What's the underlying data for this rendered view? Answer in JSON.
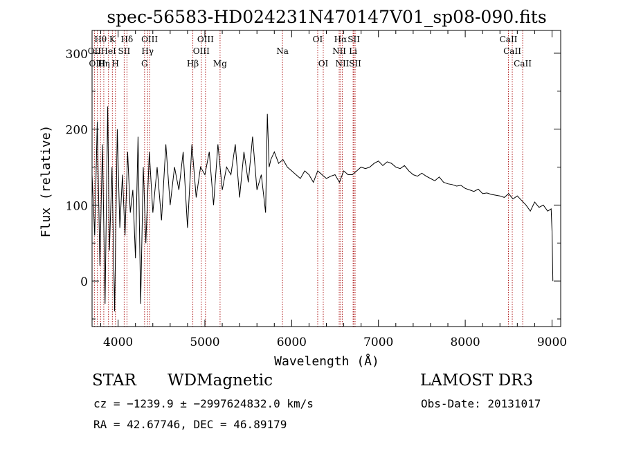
{
  "chart_data": {
    "type": "line",
    "title": "spec-56583-HD024231N470147V01_sp08-090.fits",
    "xlabel": "Wavelength (Å)",
    "ylabel": "Flux (relative)",
    "xlim": [
      3700,
      9100
    ],
    "ylim": [
      -60,
      330
    ],
    "x_ticks": [
      4000,
      5000,
      6000,
      7000,
      8000,
      9000
    ],
    "x_tick_labels": [
      "4000",
      "5000",
      "6000",
      "7000",
      "8000",
      "9000"
    ],
    "y_ticks": [
      0,
      100,
      200,
      300
    ],
    "y_tick_labels": [
      "0",
      "100",
      "200",
      "300"
    ],
    "grid": false,
    "line_color": "#000000",
    "marker_color": "#b22222",
    "series": [
      {
        "name": "flux",
        "x": [
          3700,
          3730,
          3760,
          3790,
          3820,
          3850,
          3880,
          3900,
          3930,
          3960,
          3990,
          4020,
          4050,
          4080,
          4110,
          4140,
          4170,
          4200,
          4230,
          4260,
          4290,
          4320,
          4360,
          4400,
          4450,
          4500,
          4550,
          4600,
          4650,
          4700,
          4750,
          4800,
          4850,
          4900,
          4950,
          5000,
          5050,
          5100,
          5150,
          5200,
          5250,
          5300,
          5350,
          5400,
          5450,
          5500,
          5550,
          5600,
          5650,
          5700,
          5720,
          5740,
          5760,
          5800,
          5850,
          5900,
          5950,
          6000,
          6050,
          6100,
          6150,
          6200,
          6250,
          6300,
          6350,
          6400,
          6450,
          6500,
          6550,
          6600,
          6650,
          6700,
          6750,
          6800,
          6850,
          6900,
          6950,
          7000,
          7050,
          7100,
          7150,
          7200,
          7250,
          7300,
          7350,
          7400,
          7450,
          7500,
          7550,
          7600,
          7650,
          7700,
          7750,
          7800,
          7850,
          7900,
          7950,
          8000,
          8050,
          8100,
          8150,
          8200,
          8250,
          8300,
          8350,
          8400,
          8450,
          8500,
          8550,
          8600,
          8650,
          8700,
          8750,
          8800,
          8850,
          8900,
          8950,
          8990,
          9000,
          9010
        ],
        "y": [
          140,
          60,
          210,
          20,
          180,
          -30,
          230,
          40,
          150,
          -40,
          200,
          70,
          140,
          60,
          170,
          90,
          120,
          30,
          190,
          -30,
          150,
          50,
          170,
          90,
          150,
          80,
          180,
          100,
          150,
          120,
          170,
          70,
          180,
          110,
          150,
          140,
          170,
          100,
          180,
          120,
          150,
          140,
          180,
          110,
          170,
          130,
          190,
          120,
          140,
          90,
          220,
          150,
          160,
          170,
          155,
          160,
          150,
          145,
          140,
          135,
          145,
          140,
          130,
          145,
          140,
          135,
          138,
          140,
          130,
          145,
          140,
          140,
          145,
          150,
          148,
          150,
          155,
          158,
          152,
          157,
          155,
          150,
          148,
          152,
          145,
          140,
          138,
          142,
          138,
          135,
          132,
          137,
          130,
          128,
          127,
          125,
          126,
          122,
          120,
          118,
          121,
          115,
          116,
          114,
          113,
          112,
          110,
          115,
          108,
          112,
          106,
          100,
          92,
          104,
          97,
          100,
          92,
          95,
          65,
          0
        ]
      }
    ],
    "lines": [
      {
        "label": "Hθ",
        "x": 3798,
        "row": 1
      },
      {
        "label": "OII",
        "x": 3727,
        "row": 2
      },
      {
        "label": "OIII",
        "x": 3760,
        "row": 3
      },
      {
        "label": "Hη",
        "x": 3835,
        "row": 3
      },
      {
        "label": "K",
        "x": 3934,
        "row": 1
      },
      {
        "label": "HeI",
        "x": 3889,
        "row": 2
      },
      {
        "label": "H",
        "x": 3969,
        "row": 3
      },
      {
        "label": "SII",
        "x": 4070,
        "row": 2
      },
      {
        "label": "Hδ",
        "x": 4102,
        "row": 1
      },
      {
        "label": "OIII",
        "x": 4363,
        "row": 1
      },
      {
        "label": "Hγ",
        "x": 4340,
        "row": 2
      },
      {
        "label": "G",
        "x": 4305,
        "row": 3
      },
      {
        "label": "Hβ",
        "x": 4861,
        "row": 3
      },
      {
        "label": "OIII",
        "x": 5007,
        "row": 1
      },
      {
        "label": "OIII",
        "x": 4959,
        "row": 2
      },
      {
        "label": "Mg",
        "x": 5175,
        "row": 3
      },
      {
        "label": "Na",
        "x": 5894,
        "row": 2
      },
      {
        "label": "OI",
        "x": 6300,
        "row": 1
      },
      {
        "label": "OI",
        "x": 6364,
        "row": 3
      },
      {
        "label": "Hα",
        "x": 6563,
        "row": 1
      },
      {
        "label": "NII",
        "x": 6548,
        "row": 2
      },
      {
        "label": "NII",
        "x": 6583,
        "row": 3
      },
      {
        "label": "SII",
        "x": 6716,
        "row": 1
      },
      {
        "label": "Li",
        "x": 6708,
        "row": 2
      },
      {
        "label": "SII",
        "x": 6731,
        "row": 3
      },
      {
        "label": "CaII",
        "x": 8498,
        "row": 1
      },
      {
        "label": "CaII",
        "x": 8542,
        "row": 2
      },
      {
        "label": "CaII",
        "x": 8662,
        "row": 3
      }
    ]
  },
  "info": {
    "class": "STAR",
    "subclass": "WDMagnetic",
    "survey": "LAMOST DR3",
    "redshift": "cz = −1239.9 ± −2997624832.0 km/s",
    "obs_date": "Obs-Date: 20131017",
    "coords": "RA =  42.67746, DEC =  46.89179"
  }
}
